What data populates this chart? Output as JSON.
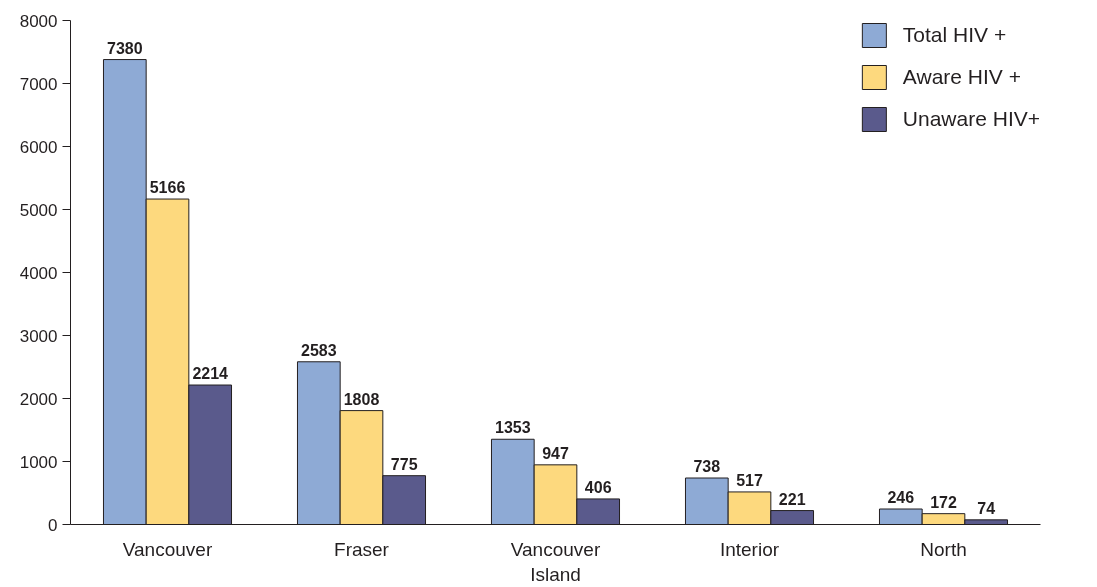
{
  "chart_data": {
    "type": "bar",
    "categories": [
      "Vancouver",
      "Fraser",
      "Vancouver Island",
      "Interior",
      "North"
    ],
    "series": [
      {
        "name": "Total HIV +",
        "color": "#8eaad5",
        "values": [
          7380,
          2583,
          1353,
          738,
          246
        ]
      },
      {
        "name": "Aware HIV +",
        "color": "#fdd97e",
        "values": [
          5166,
          1808,
          947,
          517,
          172
        ]
      },
      {
        "name": "Unaware HIV+",
        "color": "#5a5a8c",
        "values": [
          2214,
          775,
          406,
          221,
          74
        ]
      }
    ],
    "ylim": [
      0,
      8000
    ],
    "yticks": [
      0,
      1000,
      2000,
      3000,
      4000,
      5000,
      6000,
      7000,
      8000
    ],
    "data_labels": true,
    "legend": "top right"
  }
}
